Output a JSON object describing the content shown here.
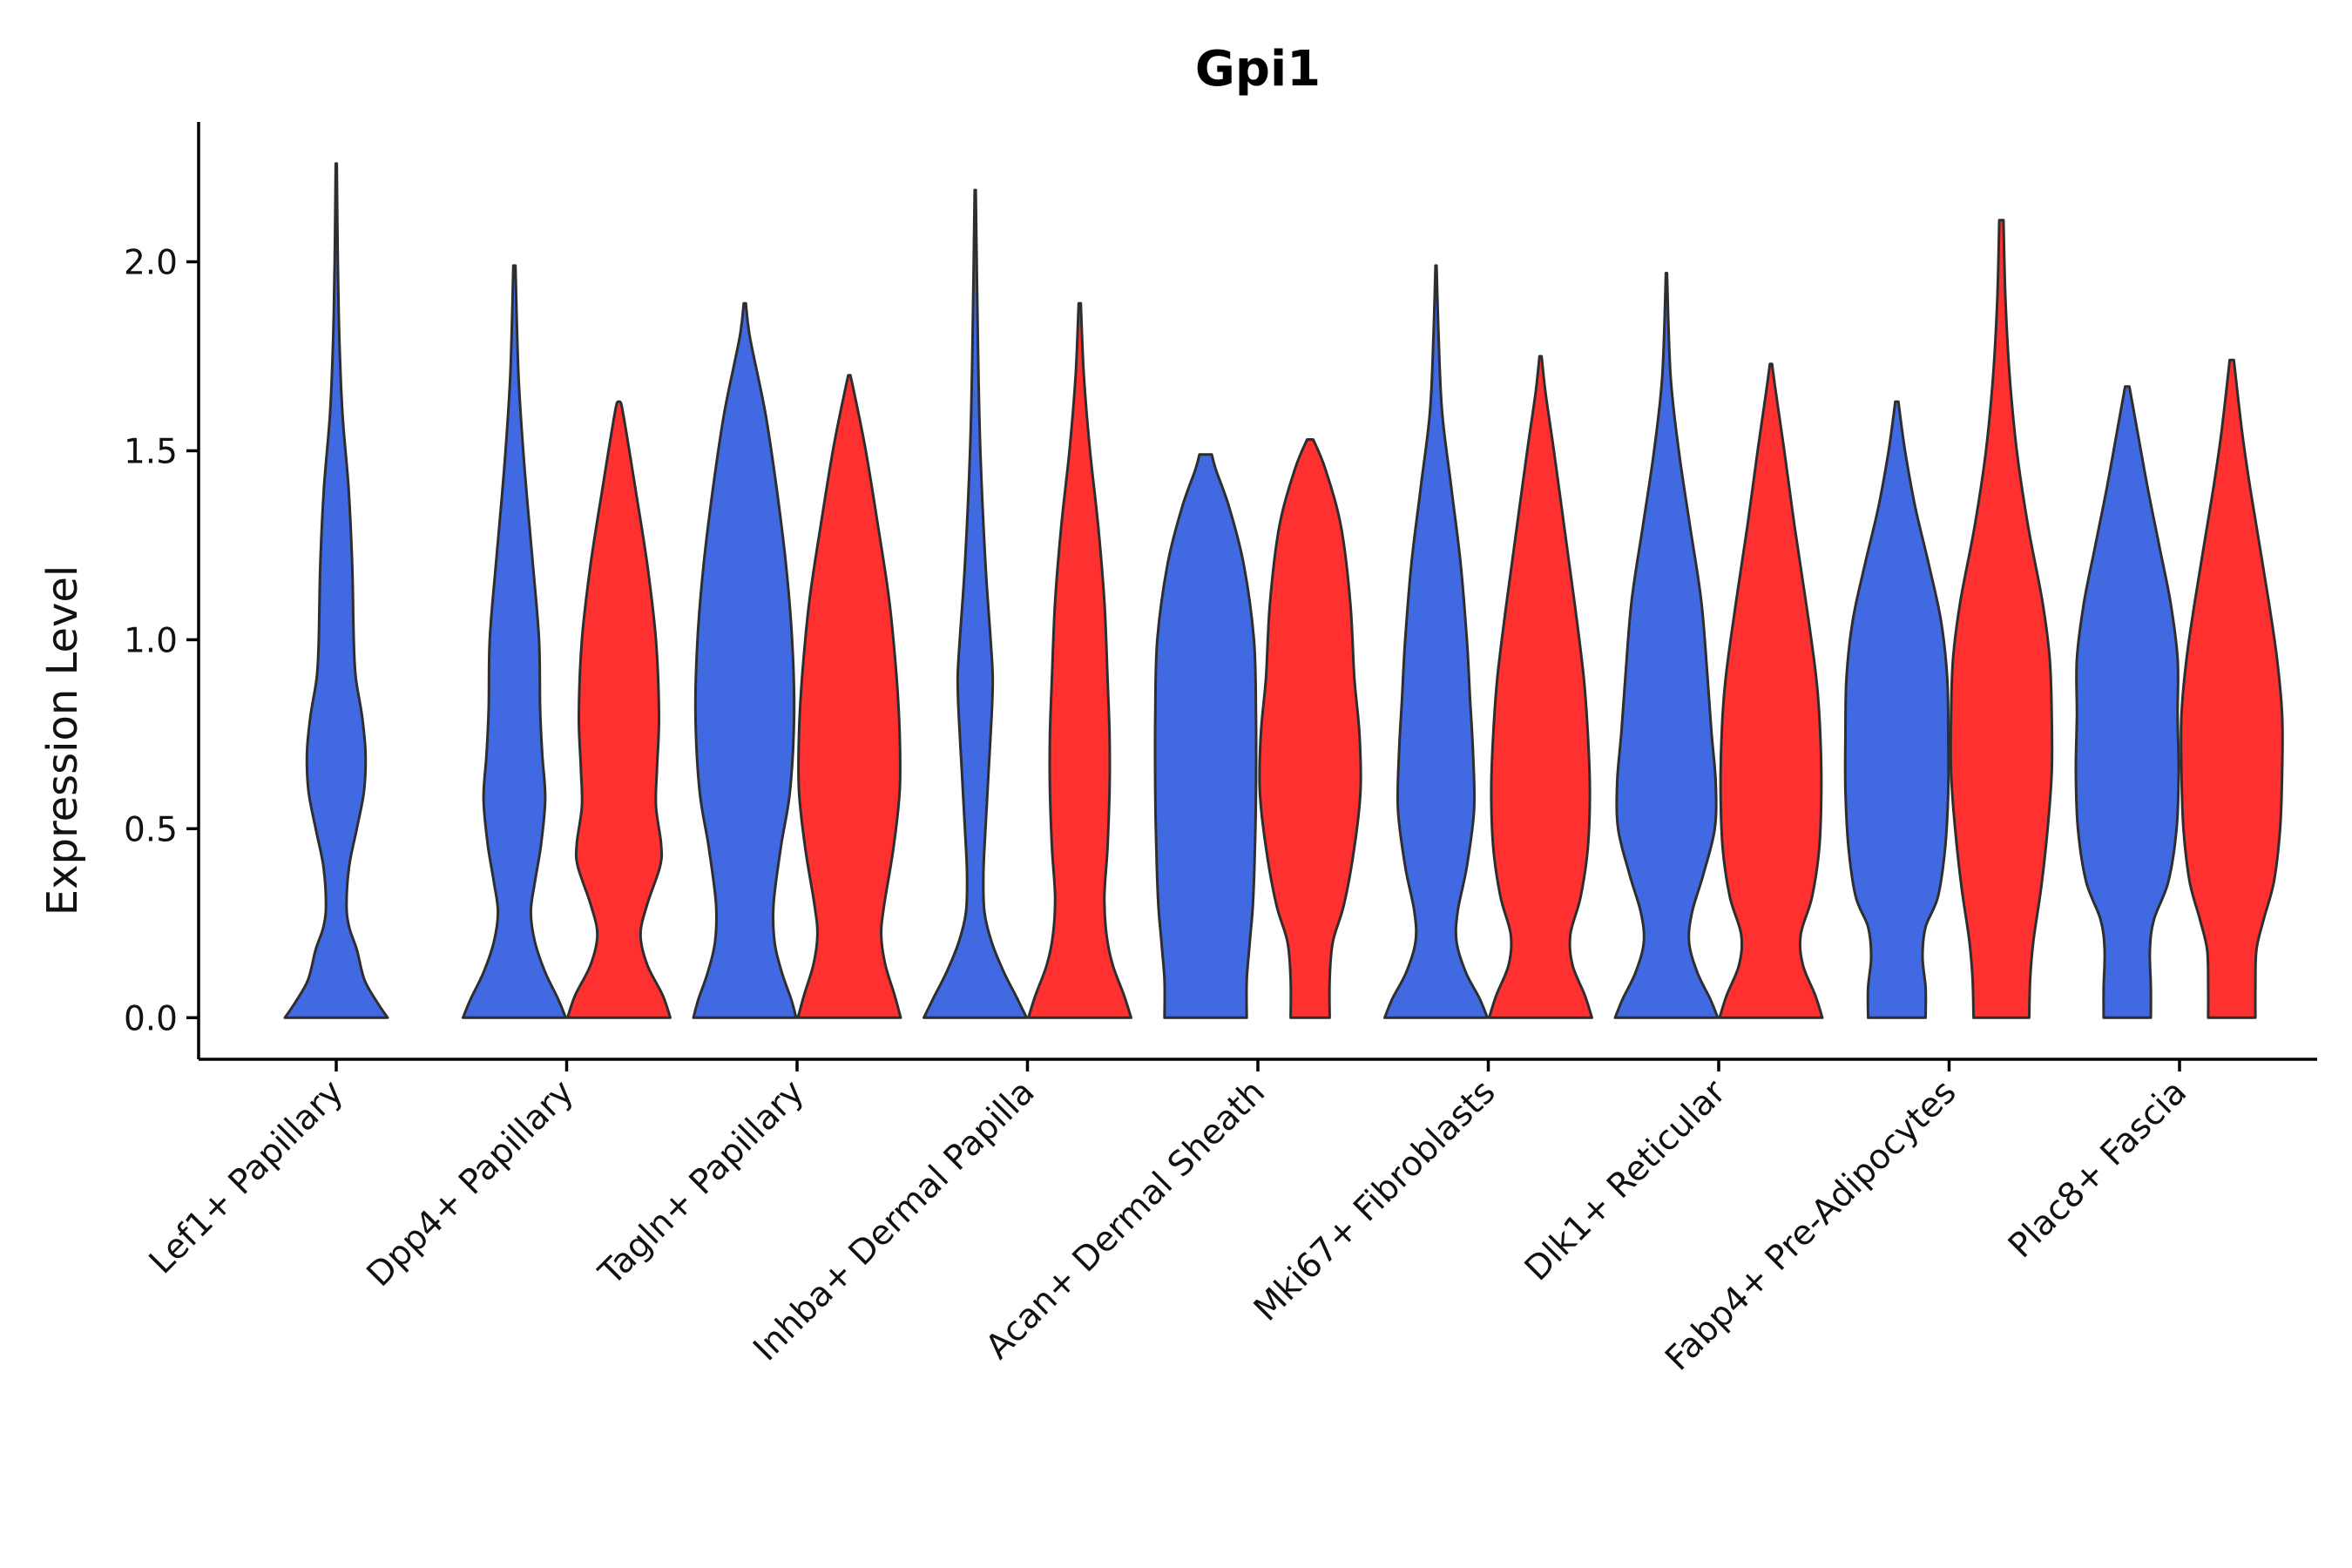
{
  "chart_data": {
    "type": "violin",
    "title": "Gpi1",
    "xlabel": "",
    "ylabel": "Expression Level",
    "ylim": [
      -0.11,
      2.37
    ],
    "yticks": [
      0.0,
      0.5,
      1.0,
      1.5,
      2.0
    ],
    "ytick_labels": [
      "0.0",
      "0.5",
      "1.0",
      "1.5",
      "2.0"
    ],
    "grid": false,
    "legend": "none",
    "colors": {
      "group_a": "#4169E1",
      "group_b": "#FF3030",
      "outline": "#2E2E2E"
    },
    "categories": [
      "Lef1+ Papillary",
      "Dpp4+ Papillary",
      "Tagln+ Papillary",
      "Inhba+ Dermal Papilla",
      "Acan+ Dermal Sheath",
      "Mki67+ Fibroblasts",
      "Dlk1+ Reticular",
      "Fabp4+ Pre-Adipocytes",
      "Plac8+ Fascia"
    ],
    "violins": [
      {
        "category": "Lef1+ Papillary",
        "group": "group_a",
        "max": 2.26,
        "density": [
          [
            0.0,
            1.0
          ],
          [
            0.04,
            0.8
          ],
          [
            0.1,
            0.55
          ],
          [
            0.18,
            0.4
          ],
          [
            0.24,
            0.25
          ],
          [
            0.3,
            0.2
          ],
          [
            0.4,
            0.25
          ],
          [
            0.5,
            0.4
          ],
          [
            0.6,
            0.54
          ],
          [
            0.7,
            0.57
          ],
          [
            0.8,
            0.5
          ],
          [
            0.9,
            0.38
          ],
          [
            1.0,
            0.34
          ],
          [
            1.2,
            0.31
          ],
          [
            1.4,
            0.24
          ],
          [
            1.6,
            0.12
          ],
          [
            1.8,
            0.06
          ],
          [
            2.0,
            0.03
          ],
          [
            2.26,
            0.01
          ]
        ]
      },
      {
        "category": "Dpp4+ Papillary",
        "group": "group_a",
        "max": 1.99,
        "density": [
          [
            0.0,
            1.0
          ],
          [
            0.05,
            0.85
          ],
          [
            0.12,
            0.6
          ],
          [
            0.2,
            0.4
          ],
          [
            0.28,
            0.32
          ],
          [
            0.36,
            0.4
          ],
          [
            0.46,
            0.52
          ],
          [
            0.58,
            0.6
          ],
          [
            0.7,
            0.54
          ],
          [
            0.82,
            0.5
          ],
          [
            1.0,
            0.48
          ],
          [
            1.2,
            0.36
          ],
          [
            1.45,
            0.2
          ],
          [
            1.7,
            0.08
          ],
          [
            1.99,
            0.02
          ]
        ]
      },
      {
        "category": "Dpp4+ Papillary",
        "group": "group_b",
        "max": 1.63,
        "density": [
          [
            0.0,
            1.0
          ],
          [
            0.06,
            0.85
          ],
          [
            0.14,
            0.55
          ],
          [
            0.22,
            0.42
          ],
          [
            0.3,
            0.55
          ],
          [
            0.4,
            0.8
          ],
          [
            0.46,
            0.82
          ],
          [
            0.56,
            0.72
          ],
          [
            0.66,
            0.74
          ],
          [
            0.8,
            0.78
          ],
          [
            1.0,
            0.72
          ],
          [
            1.2,
            0.55
          ],
          [
            1.4,
            0.32
          ],
          [
            1.6,
            0.08
          ],
          [
            1.63,
            0.02
          ]
        ]
      },
      {
        "category": "Tagln+ Papillary",
        "group": "group_a",
        "max": 1.89,
        "density": [
          [
            0.0,
            1.0
          ],
          [
            0.05,
            0.9
          ],
          [
            0.12,
            0.72
          ],
          [
            0.2,
            0.58
          ],
          [
            0.3,
            0.56
          ],
          [
            0.45,
            0.7
          ],
          [
            0.6,
            0.88
          ],
          [
            0.8,
            0.96
          ],
          [
            1.0,
            0.92
          ],
          [
            1.2,
            0.8
          ],
          [
            1.4,
            0.62
          ],
          [
            1.6,
            0.4
          ],
          [
            1.8,
            0.1
          ],
          [
            1.89,
            0.02
          ]
        ]
      },
      {
        "category": "Tagln+ Papillary",
        "group": "group_b",
        "max": 1.7,
        "density": [
          [
            0.0,
            1.0
          ],
          [
            0.06,
            0.88
          ],
          [
            0.14,
            0.7
          ],
          [
            0.22,
            0.62
          ],
          [
            0.3,
            0.68
          ],
          [
            0.45,
            0.86
          ],
          [
            0.6,
            0.98
          ],
          [
            0.75,
            0.98
          ],
          [
            0.9,
            0.92
          ],
          [
            1.1,
            0.78
          ],
          [
            1.3,
            0.56
          ],
          [
            1.5,
            0.32
          ],
          [
            1.65,
            0.1
          ],
          [
            1.7,
            0.02
          ]
        ]
      },
      {
        "category": "Inhba+ Dermal Papilla",
        "group": "group_a",
        "max": 2.19,
        "density": [
          [
            0.0,
            1.0
          ],
          [
            0.05,
            0.82
          ],
          [
            0.12,
            0.56
          ],
          [
            0.2,
            0.32
          ],
          [
            0.28,
            0.18
          ],
          [
            0.38,
            0.16
          ],
          [
            0.5,
            0.2
          ],
          [
            0.65,
            0.26
          ],
          [
            0.8,
            0.32
          ],
          [
            0.9,
            0.34
          ],
          [
            1.0,
            0.3
          ],
          [
            1.2,
            0.2
          ],
          [
            1.5,
            0.1
          ],
          [
            1.8,
            0.05
          ],
          [
            2.19,
            0.01
          ]
        ]
      },
      {
        "category": "Inhba+ Dermal Papilla",
        "group": "group_b",
        "max": 1.89,
        "density": [
          [
            0.0,
            1.0
          ],
          [
            0.06,
            0.86
          ],
          [
            0.14,
            0.64
          ],
          [
            0.22,
            0.52
          ],
          [
            0.32,
            0.48
          ],
          [
            0.45,
            0.54
          ],
          [
            0.6,
            0.58
          ],
          [
            0.75,
            0.58
          ],
          [
            0.9,
            0.54
          ],
          [
            1.1,
            0.48
          ],
          [
            1.3,
            0.36
          ],
          [
            1.5,
            0.2
          ],
          [
            1.7,
            0.08
          ],
          [
            1.89,
            0.02
          ]
        ]
      },
      {
        "category": "Acan+ Dermal Sheath",
        "group": "group_a",
        "max": 1.49,
        "density": [
          [
            0.0,
            0.8
          ],
          [
            0.1,
            0.8
          ],
          [
            0.2,
            0.86
          ],
          [
            0.3,
            0.92
          ],
          [
            0.45,
            0.96
          ],
          [
            0.6,
            0.98
          ],
          [
            0.8,
            0.98
          ],
          [
            1.0,
            0.94
          ],
          [
            1.2,
            0.74
          ],
          [
            1.35,
            0.46
          ],
          [
            1.45,
            0.2
          ],
          [
            1.49,
            0.12
          ]
        ]
      },
      {
        "category": "Acan+ Dermal Sheath",
        "group": "group_b",
        "max": 1.53,
        "density": [
          [
            0.0,
            0.38
          ],
          [
            0.1,
            0.38
          ],
          [
            0.2,
            0.44
          ],
          [
            0.3,
            0.66
          ],
          [
            0.45,
            0.86
          ],
          [
            0.6,
            0.98
          ],
          [
            0.75,
            0.96
          ],
          [
            0.9,
            0.86
          ],
          [
            1.1,
            0.78
          ],
          [
            1.3,
            0.6
          ],
          [
            1.45,
            0.3
          ],
          [
            1.53,
            0.06
          ]
        ]
      },
      {
        "category": "Mki67+ Fibroblasts",
        "group": "group_a",
        "max": 1.99,
        "density": [
          [
            0.0,
            1.0
          ],
          [
            0.05,
            0.85
          ],
          [
            0.12,
            0.58
          ],
          [
            0.2,
            0.4
          ],
          [
            0.28,
            0.42
          ],
          [
            0.4,
            0.6
          ],
          [
            0.55,
            0.74
          ],
          [
            0.7,
            0.72
          ],
          [
            0.85,
            0.66
          ],
          [
            1.0,
            0.6
          ],
          [
            1.2,
            0.48
          ],
          [
            1.4,
            0.3
          ],
          [
            1.6,
            0.12
          ],
          [
            1.8,
            0.05
          ],
          [
            1.99,
            0.01
          ]
        ]
      },
      {
        "category": "Mki67+ Fibroblasts",
        "group": "group_b",
        "max": 1.75,
        "density": [
          [
            0.0,
            1.0
          ],
          [
            0.06,
            0.86
          ],
          [
            0.14,
            0.62
          ],
          [
            0.22,
            0.58
          ],
          [
            0.32,
            0.78
          ],
          [
            0.45,
            0.92
          ],
          [
            0.6,
            0.96
          ],
          [
            0.75,
            0.92
          ],
          [
            0.9,
            0.84
          ],
          [
            1.1,
            0.66
          ],
          [
            1.3,
            0.46
          ],
          [
            1.5,
            0.26
          ],
          [
            1.65,
            0.1
          ],
          [
            1.75,
            0.02
          ]
        ]
      },
      {
        "category": "Dlk1+ Reticular",
        "group": "group_a",
        "max": 1.97,
        "density": [
          [
            0.0,
            1.0
          ],
          [
            0.05,
            0.85
          ],
          [
            0.12,
            0.6
          ],
          [
            0.2,
            0.44
          ],
          [
            0.28,
            0.5
          ],
          [
            0.38,
            0.72
          ],
          [
            0.5,
            0.94
          ],
          [
            0.62,
            0.96
          ],
          [
            0.75,
            0.88
          ],
          [
            0.9,
            0.8
          ],
          [
            1.1,
            0.68
          ],
          [
            1.3,
            0.46
          ],
          [
            1.5,
            0.24
          ],
          [
            1.7,
            0.08
          ],
          [
            1.97,
            0.01
          ]
        ]
      },
      {
        "category": "Dlk1+ Reticular",
        "group": "group_b",
        "max": 1.73,
        "density": [
          [
            0.0,
            1.0
          ],
          [
            0.06,
            0.86
          ],
          [
            0.14,
            0.62
          ],
          [
            0.22,
            0.58
          ],
          [
            0.32,
            0.8
          ],
          [
            0.45,
            0.94
          ],
          [
            0.6,
            0.98
          ],
          [
            0.75,
            0.96
          ],
          [
            0.9,
            0.88
          ],
          [
            1.1,
            0.68
          ],
          [
            1.3,
            0.46
          ],
          [
            1.5,
            0.26
          ],
          [
            1.65,
            0.1
          ],
          [
            1.73,
            0.02
          ]
        ]
      },
      {
        "category": "Fabp4+ Pre-Adipocytes",
        "group": "group_a",
        "max": 1.63,
        "density": [
          [
            0.0,
            0.56
          ],
          [
            0.08,
            0.56
          ],
          [
            0.16,
            0.5
          ],
          [
            0.24,
            0.56
          ],
          [
            0.32,
            0.8
          ],
          [
            0.45,
            0.94
          ],
          [
            0.6,
            1.0
          ],
          [
            0.75,
            1.0
          ],
          [
            0.9,
            0.98
          ],
          [
            1.05,
            0.86
          ],
          [
            1.2,
            0.62
          ],
          [
            1.35,
            0.36
          ],
          [
            1.5,
            0.16
          ],
          [
            1.63,
            0.03
          ]
        ]
      },
      {
        "category": "Fabp4+ Pre-Adipocytes",
        "group": "group_b",
        "max": 2.11,
        "density": [
          [
            0.0,
            0.54
          ],
          [
            0.1,
            0.56
          ],
          [
            0.2,
            0.62
          ],
          [
            0.35,
            0.78
          ],
          [
            0.5,
            0.9
          ],
          [
            0.65,
            0.98
          ],
          [
            0.8,
            0.98
          ],
          [
            0.95,
            0.94
          ],
          [
            1.1,
            0.8
          ],
          [
            1.3,
            0.52
          ],
          [
            1.5,
            0.3
          ],
          [
            1.7,
            0.16
          ],
          [
            1.9,
            0.08
          ],
          [
            2.11,
            0.04
          ]
        ]
      },
      {
        "category": "Plac8+ Fascia",
        "group": "group_a",
        "max": 1.67,
        "density": [
          [
            0.0,
            0.46
          ],
          [
            0.08,
            0.46
          ],
          [
            0.18,
            0.44
          ],
          [
            0.26,
            0.52
          ],
          [
            0.36,
            0.8
          ],
          [
            0.5,
            0.96
          ],
          [
            0.65,
            1.0
          ],
          [
            0.8,
            0.98
          ],
          [
            0.95,
            0.98
          ],
          [
            1.1,
            0.84
          ],
          [
            1.25,
            0.62
          ],
          [
            1.4,
            0.4
          ],
          [
            1.55,
            0.2
          ],
          [
            1.67,
            0.04
          ]
        ]
      },
      {
        "category": "Plac8+ Fascia",
        "group": "group_b",
        "max": 1.74,
        "density": [
          [
            0.0,
            0.46
          ],
          [
            0.08,
            0.46
          ],
          [
            0.18,
            0.48
          ],
          [
            0.26,
            0.62
          ],
          [
            0.36,
            0.82
          ],
          [
            0.5,
            0.94
          ],
          [
            0.65,
            0.98
          ],
          [
            0.8,
            0.98
          ],
          [
            0.95,
            0.88
          ],
          [
            1.1,
            0.72
          ],
          [
            1.25,
            0.54
          ],
          [
            1.4,
            0.36
          ],
          [
            1.55,
            0.2
          ],
          [
            1.74,
            0.04
          ]
        ]
      }
    ]
  }
}
